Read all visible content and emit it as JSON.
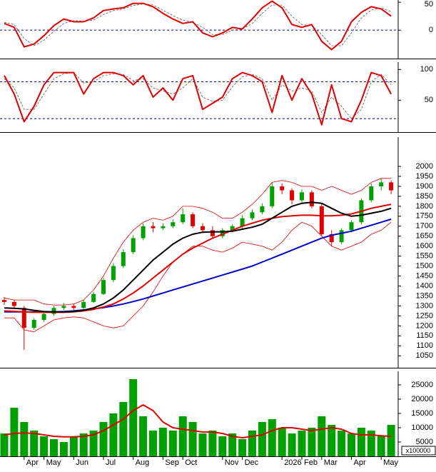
{
  "chart_data": [
    {
      "type": "line",
      "ylim": [
        -51,
        54
      ],
      "yticks": [
        0,
        50
      ],
      "reference_lines": [
        0
      ],
      "series": [
        {
          "color": "#e00000",
          "width": 2,
          "values": [
            12,
            5,
            -30,
            -25,
            -10,
            8,
            20,
            15,
            15,
            22,
            35,
            38,
            40,
            48,
            48,
            42,
            30,
            20,
            12,
            15,
            -5,
            -12,
            -5,
            5,
            2,
            20,
            40,
            52,
            40,
            10,
            5,
            10,
            -20,
            -35,
            -20,
            15,
            32,
            42,
            38,
            25
          ]
        },
        {
          "color": "#555555",
          "width": 0.8,
          "dash": true,
          "values": [
            14,
            10,
            -15,
            -28,
            -18,
            -2,
            12,
            17,
            16,
            18,
            28,
            35,
            38,
            44,
            47,
            45,
            36,
            26,
            18,
            14,
            5,
            -8,
            -8,
            0,
            2,
            12,
            30,
            45,
            45,
            25,
            10,
            8,
            -8,
            -28,
            -28,
            -5,
            22,
            36,
            40,
            33
          ]
        }
      ]
    },
    {
      "type": "line",
      "ylim": [
        -2,
        112
      ],
      "yticks": [
        50,
        100
      ],
      "reference_lines": [
        20,
        80
      ],
      "series": [
        {
          "color": "#e00000",
          "width": 2,
          "values": [
            90,
            60,
            15,
            40,
            75,
            95,
            95,
            95,
            60,
            85,
            95,
            95,
            90,
            75,
            90,
            55,
            70,
            50,
            85,
            90,
            35,
            45,
            55,
            85,
            95,
            90,
            80,
            30,
            90,
            50,
            85,
            60,
            10,
            75,
            20,
            15,
            50,
            95,
            90,
            60
          ]
        },
        {
          "color": "#555555",
          "width": 0.8,
          "dash": true,
          "values": [
            85,
            70,
            35,
            35,
            60,
            85,
            93,
            95,
            78,
            80,
            90,
            93,
            92,
            82,
            85,
            70,
            65,
            60,
            70,
            85,
            55,
            48,
            50,
            72,
            88,
            92,
            85,
            50,
            75,
            65,
            70,
            65,
            30,
            55,
            40,
            20,
            35,
            80,
            92,
            75
          ]
        }
      ]
    },
    {
      "type": "candlestick",
      "ylim": [
        990,
        2147
      ],
      "yticks": [
        1050,
        1100,
        1150,
        1200,
        1250,
        1300,
        1350,
        1400,
        1450,
        1500,
        1550,
        1600,
        1650,
        1700,
        1750,
        1800,
        1850,
        1900,
        1950,
        2000
      ],
      "up_color": "#00a000",
      "down_color": "#e00000",
      "open": [
        1330,
        1320,
        1290,
        1190,
        1230,
        1260,
        1290,
        1300,
        1290,
        1320,
        1360,
        1430,
        1500,
        1570,
        1640,
        1700,
        1690,
        1700,
        1720,
        1760,
        1700,
        1680,
        1650,
        1680,
        1700,
        1740,
        1770,
        1800,
        1900,
        1880,
        1830,
        1870,
        1800,
        1660,
        1620,
        1680,
        1720,
        1830,
        1900,
        1920
      ],
      "high": [
        1345,
        1330,
        1300,
        1240,
        1270,
        1300,
        1315,
        1310,
        1330,
        1370,
        1440,
        1515,
        1585,
        1655,
        1715,
        1720,
        1715,
        1735,
        1790,
        1770,
        1715,
        1700,
        1690,
        1710,
        1755,
        1785,
        1815,
        1920,
        1915,
        1890,
        1885,
        1880,
        1810,
        1680,
        1690,
        1730,
        1840,
        1915,
        1940,
        1930
      ],
      "low": [
        1305,
        1285,
        1080,
        1180,
        1220,
        1250,
        1280,
        1280,
        1285,
        1315,
        1355,
        1420,
        1490,
        1560,
        1630,
        1670,
        1680,
        1690,
        1710,
        1690,
        1670,
        1640,
        1640,
        1670,
        1690,
        1730,
        1760,
        1790,
        1860,
        1810,
        1820,
        1790,
        1650,
        1600,
        1610,
        1670,
        1710,
        1820,
        1880,
        1860
      ],
      "close": [
        1320,
        1300,
        1190,
        1230,
        1260,
        1290,
        1300,
        1290,
        1320,
        1360,
        1430,
        1500,
        1570,
        1640,
        1700,
        1690,
        1700,
        1720,
        1760,
        1700,
        1680,
        1650,
        1680,
        1700,
        1740,
        1770,
        1800,
        1900,
        1880,
        1830,
        1870,
        1800,
        1660,
        1620,
        1680,
        1720,
        1830,
        1900,
        1920,
        1880
      ],
      "overlays": [
        {
          "color": "#e00000",
          "width": 0.8,
          "values": [
            1340,
            1330,
            1330,
            1330,
            1310,
            1305,
            1305,
            1310,
            1330,
            1380,
            1450,
            1540,
            1620,
            1680,
            1720,
            1740,
            1730,
            1750,
            1800,
            1800,
            1790,
            1770,
            1740,
            1740,
            1770,
            1810,
            1860,
            1920,
            1930,
            1920,
            1900,
            1900,
            1880,
            1900,
            1880,
            1860,
            1880,
            1920,
            1940,
            1940
          ]
        },
        {
          "color": "#e00000",
          "width": 0.8,
          "values": [
            1240,
            1240,
            1180,
            1170,
            1200,
            1230,
            1240,
            1245,
            1240,
            1220,
            1200,
            1190,
            1200,
            1250,
            1300,
            1370,
            1450,
            1520,
            1560,
            1600,
            1600,
            1580,
            1570,
            1590,
            1620,
            1610,
            1600,
            1580,
            1620,
            1680,
            1720,
            1700,
            1650,
            1600,
            1580,
            1600,
            1620,
            1660,
            1680,
            1720
          ]
        },
        {
          "color": "#0000cc",
          "width": 2,
          "values": [
            1270,
            1270,
            1270,
            1270,
            1270,
            1270,
            1272,
            1275,
            1280,
            1285,
            1292,
            1300,
            1310,
            1322,
            1335,
            1350,
            1365,
            1380,
            1395,
            1410,
            1425,
            1440,
            1455,
            1470,
            1485,
            1500,
            1520,
            1540,
            1560,
            1580,
            1600,
            1620,
            1640,
            1655,
            1665,
            1675,
            1690,
            1705,
            1720,
            1735
          ]
        },
        {
          "color": "#e00000",
          "width": 2,
          "values": [
            1275,
            1273,
            1270,
            1268,
            1268,
            1268,
            1268,
            1270,
            1275,
            1283,
            1295,
            1310,
            1335,
            1365,
            1400,
            1440,
            1480,
            1520,
            1560,
            1590,
            1615,
            1640,
            1660,
            1680,
            1700,
            1715,
            1730,
            1740,
            1748,
            1752,
            1755,
            1755,
            1752,
            1752,
            1755,
            1762,
            1775,
            1790,
            1800,
            1810
          ]
        },
        {
          "color": "#000000",
          "width": 2,
          "values": [
            1290,
            1288,
            1285,
            1278,
            1272,
            1270,
            1270,
            1272,
            1278,
            1290,
            1310,
            1340,
            1380,
            1430,
            1480,
            1530,
            1570,
            1610,
            1640,
            1660,
            1670,
            1672,
            1672,
            1675,
            1685,
            1695,
            1710,
            1740,
            1770,
            1800,
            1815,
            1820,
            1815,
            1790,
            1765,
            1750,
            1755,
            1765,
            1775,
            1790
          ]
        }
      ]
    },
    {
      "type": "bar",
      "ylim": [
        0,
        29750
      ],
      "yticks": [
        5000,
        10000,
        15000,
        20000,
        25000
      ],
      "color": "#00a000",
      "unit_label": "x100000",
      "categories": [
        null,
        null,
        "Apr",
        null,
        "May",
        null,
        null,
        "Jun",
        null,
        null,
        "Jul",
        null,
        null,
        "Aug",
        null,
        null,
        "Sep",
        null,
        "Oct",
        null,
        null,
        null,
        "Nov",
        null,
        "Dec",
        null,
        null,
        null,
        "2026",
        null,
        "Feb",
        null,
        "Mar",
        null,
        null,
        "Apr",
        null,
        null,
        "May",
        null
      ],
      "values": [
        8000,
        17000,
        12000,
        9000,
        7000,
        6000,
        5000,
        7000,
        8000,
        9000,
        12000,
        15000,
        19000,
        27000,
        14000,
        9000,
        10000,
        9000,
        14000,
        12000,
        8000,
        9000,
        7000,
        8000,
        6000,
        9000,
        12000,
        13000,
        10000,
        8000,
        9000,
        10000,
        14000,
        11000,
        9000,
        8000,
        10000,
        9000,
        7000,
        11000
      ],
      "average": {
        "color": "#e00000",
        "width": 2,
        "values": [
          7500,
          8000,
          8200,
          8000,
          7500,
          7000,
          6800,
          6800,
          7000,
          7500,
          9000,
          11000,
          13000,
          16000,
          18000,
          16000,
          12000,
          10000,
          9500,
          9000,
          8500,
          8500,
          8000,
          7000,
          6500,
          7000,
          7500,
          9000,
          10000,
          10000,
          9500,
          9000,
          9500,
          10000,
          9500,
          8000,
          7500,
          7500,
          7200,
          7000
        ]
      }
    }
  ]
}
